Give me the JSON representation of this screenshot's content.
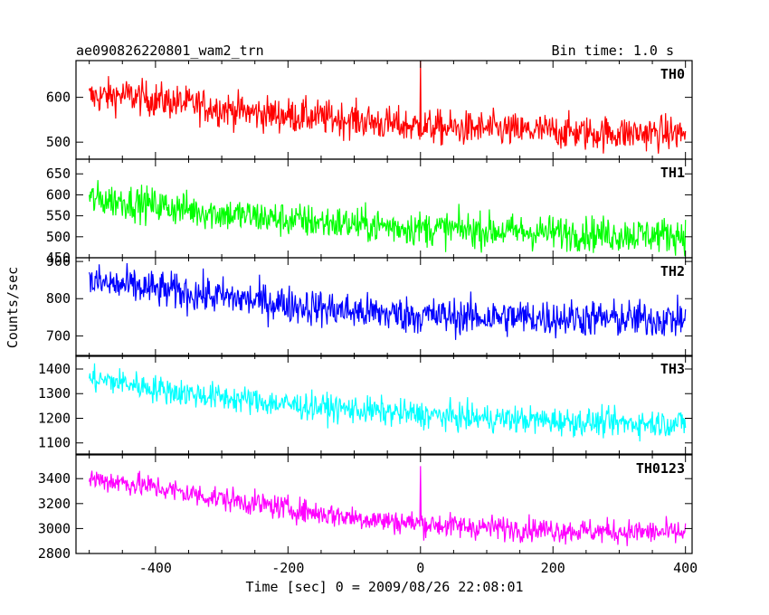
{
  "header": {
    "title": "ae090826220801_wam2_trn",
    "bin_time": "Bin time: 1.0 s"
  },
  "chart_data": {
    "type": "line",
    "title": "ae090826220801_wam2_trn",
    "subtitle": "Bin time: 1.0 s",
    "xlabel": "Time [sec] 0 = 2009/08/26 22:08:01",
    "ylabel": "Counts/sec",
    "xlim": [
      -520,
      410
    ],
    "x_ticks": [
      -400,
      -200,
      0,
      200,
      400
    ],
    "panels": [
      {
        "name": "TH0",
        "color": "#ff0000",
        "ylim": [
          462,
          682
        ],
        "y_ticks": [
          500,
          600
        ],
        "x": [
          -500,
          -450,
          -400,
          -350,
          -300,
          -250,
          -200,
          -150,
          -100,
          -50,
          0,
          50,
          100,
          150,
          200,
          250,
          300,
          350,
          400
        ],
        "values": [
          600,
          605,
          595,
          585,
          575,
          565,
          560,
          555,
          550,
          540,
          535,
          530,
          530,
          525,
          525,
          520,
          520,
          520,
          520
        ],
        "spread": 28,
        "spike": {
          "x": 0,
          "y": 682
        }
      },
      {
        "name": "TH1",
        "color": "#00ff00",
        "ylim": [
          450,
          685
        ],
        "y_ticks": [
          450,
          500,
          550,
          600,
          650
        ],
        "x": [
          -500,
          -450,
          -400,
          -350,
          -300,
          -250,
          -200,
          -150,
          -100,
          -50,
          0,
          50,
          100,
          150,
          200,
          250,
          300,
          350,
          400
        ],
        "values": [
          590,
          585,
          575,
          565,
          555,
          548,
          540,
          535,
          530,
          525,
          520,
          518,
          515,
          512,
          510,
          508,
          505,
          505,
          505
        ],
        "spread": 30
      },
      {
        "name": "TH2",
        "color": "#0000ff",
        "ylim": [
          645,
          910
        ],
        "y_ticks": [
          700,
          800,
          900
        ],
        "x": [
          -500,
          -450,
          -400,
          -350,
          -300,
          -250,
          -200,
          -150,
          -100,
          -50,
          0,
          50,
          100,
          150,
          200,
          250,
          300,
          350,
          400
        ],
        "values": [
          845,
          835,
          825,
          815,
          805,
          795,
          785,
          775,
          765,
          760,
          755,
          752,
          750,
          750,
          748,
          748,
          745,
          745,
          745
        ],
        "spread": 36
      },
      {
        "name": "TH3",
        "color": "#00ffff",
        "ylim": [
          1055,
          1455
        ],
        "y_ticks": [
          1100,
          1200,
          1300,
          1400
        ],
        "x": [
          -500,
          -450,
          -400,
          -350,
          -300,
          -250,
          -200,
          -150,
          -100,
          -50,
          0,
          50,
          100,
          150,
          200,
          250,
          300,
          350,
          400
        ],
        "values": [
          1360,
          1345,
          1320,
          1300,
          1285,
          1270,
          1255,
          1245,
          1235,
          1225,
          1215,
          1205,
          1200,
          1195,
          1190,
          1185,
          1180,
          1180,
          1180
        ],
        "spread": 40
      },
      {
        "name": "TH0123",
        "color": "#ff00ff",
        "ylim": [
          2800,
          3590
        ],
        "y_ticks": [
          2800,
          3000,
          3200,
          3400
        ],
        "x": [
          -500,
          -450,
          -400,
          -350,
          -300,
          -250,
          -200,
          -150,
          -100,
          -50,
          0,
          50,
          100,
          150,
          200,
          250,
          300,
          350,
          400
        ],
        "values": [
          3400,
          3370,
          3330,
          3280,
          3240,
          3200,
          3160,
          3120,
          3090,
          3060,
          3040,
          3020,
          3010,
          3000,
          2990,
          2980,
          2975,
          2970,
          2965
        ],
        "spread": 70,
        "spike": {
          "x": 0,
          "y": 3500
        }
      }
    ]
  }
}
